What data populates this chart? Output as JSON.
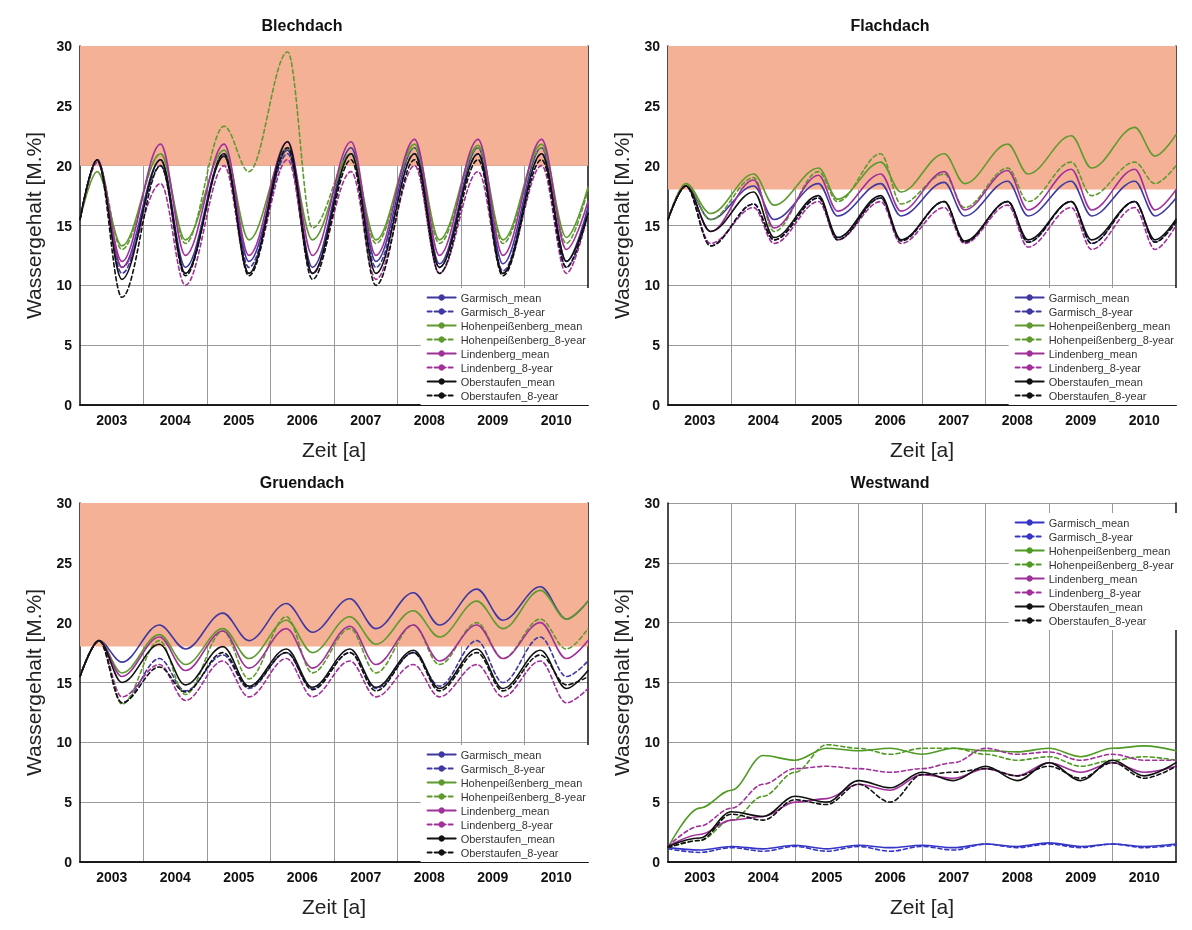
{
  "chart_data": [
    {
      "type": "line",
      "title": "Blechdach",
      "xlabel": "Zeit [a]",
      "ylabel": "Wassergehalt [M.%]",
      "grid": true,
      "legend": "bottom right",
      "xlim": [
        2003,
        2011
      ],
      "xticks": [
        {
          "value": 2003.5,
          "label": "2003"
        },
        {
          "value": 2004,
          "label": null
        },
        {
          "value": 2004.5,
          "label": "2004"
        },
        {
          "value": 2005,
          "label": null
        },
        {
          "value": 2005.5,
          "label": "2005"
        },
        {
          "value": 2006,
          "label": null
        },
        {
          "value": 2006.5,
          "label": "2006"
        },
        {
          "value": 2007,
          "label": null
        },
        {
          "value": 2007.5,
          "label": "2007"
        },
        {
          "value": 2008,
          "label": null
        },
        {
          "value": 2008.5,
          "label": "2008"
        },
        {
          "value": 2009,
          "label": null
        },
        {
          "value": 2009.5,
          "label": "2009"
        },
        {
          "value": 2010,
          "label": null
        },
        {
          "value": 2010.5,
          "label": "2010"
        }
      ],
      "ylim": [
        0,
        30
      ],
      "yticks": [
        0,
        5,
        10,
        15,
        20,
        25,
        30
      ],
      "bands": [
        {
          "axis": "y",
          "from": 20,
          "to": 30,
          "color": "#f4b196"
        }
      ],
      "x": [
        2003.0,
        2003.27,
        2003.66,
        2004.27,
        2004.66,
        2005.27,
        2005.66,
        2006.27,
        2006.66,
        2007.27,
        2007.66,
        2008.27,
        2008.66,
        2009.27,
        2009.66,
        2010.27,
        2010.66,
        2011.0
      ],
      "series": [
        {
          "name": "Garmisch_mean",
          "color": "#3f38a0",
          "line_style": "solid",
          "values": [
            15.5,
            20.5,
            11.5,
            20.5,
            11.5,
            21,
            12,
            21.3,
            11.5,
            21.5,
            12,
            21.5,
            11.8,
            21.5,
            11.8,
            21.5,
            12,
            16.5
          ]
        },
        {
          "name": "Garmisch_8-year",
          "color": "#3f38a0",
          "line_style": "dashed",
          "values": [
            15.5,
            20.5,
            11,
            20,
            11,
            21,
            11.5,
            21,
            11,
            21,
            11.5,
            21,
            11.5,
            21,
            11.2,
            21,
            11.5,
            16
          ]
        },
        {
          "name": "Hohenpeißenberg_mean",
          "color": "#5f9a2e",
          "line_style": "solid",
          "values": [
            15.5,
            19.5,
            13.3,
            21,
            13.8,
            21.3,
            13.8,
            21.5,
            13.8,
            21,
            13.8,
            21.8,
            13.8,
            21.7,
            13.8,
            21.8,
            14,
            18.2
          ]
        },
        {
          "name": "Hohenpeißenberg_8-year",
          "color": "#5f9a2e",
          "line_style": "dashed",
          "values": [
            15.5,
            20.3,
            13,
            21,
            13.5,
            23.3,
            19.5,
            29.5,
            14.8,
            21,
            13.5,
            21.5,
            13.5,
            21.5,
            13.5,
            21.5,
            13.5,
            18
          ]
        },
        {
          "name": "Lindenberg_mean",
          "color": "#a0309a",
          "line_style": "solid",
          "values": [
            15.5,
            20.5,
            12,
            21.8,
            12.5,
            21.8,
            12.5,
            22,
            12.5,
            22,
            12.5,
            22.2,
            12.5,
            22.2,
            12.5,
            22.2,
            13,
            17
          ]
        },
        {
          "name": "Lindenberg_8-year",
          "color": "#a0309a",
          "line_style": "dashed",
          "values": [
            15.5,
            20.3,
            11.5,
            18.5,
            10,
            20,
            11,
            20.5,
            11,
            19.5,
            10.5,
            20,
            11,
            19.5,
            11,
            20,
            11,
            16
          ]
        },
        {
          "name": "Oberstaufen_mean",
          "color": "#111111",
          "line_style": "solid",
          "values": [
            15.5,
            20.5,
            10.5,
            20.5,
            11,
            20.8,
            11,
            22,
            11,
            21,
            11,
            21,
            11.5,
            21,
            11,
            21,
            12,
            16
          ]
        },
        {
          "name": "Oberstaufen_8-year",
          "color": "#111111",
          "line_style": "dashed",
          "values": [
            15.5,
            20.5,
            9,
            20,
            10.8,
            21,
            10.8,
            21.5,
            10.5,
            20.5,
            10,
            20.5,
            11,
            20.5,
            10.8,
            20.5,
            11.5,
            16
          ]
        }
      ]
    },
    {
      "type": "line",
      "title": "Flachdach",
      "xlabel": "Zeit [a]",
      "ylabel": "Wassergehalt [M.%]",
      "grid": true,
      "legend": "bottom right",
      "xlim": [
        2003,
        2011
      ],
      "xticks": [
        {
          "value": 2003.5,
          "label": "2003"
        },
        {
          "value": 2004,
          "label": null
        },
        {
          "value": 2004.5,
          "label": "2004"
        },
        {
          "value": 2005,
          "label": null
        },
        {
          "value": 2005.5,
          "label": "2005"
        },
        {
          "value": 2006,
          "label": null
        },
        {
          "value": 2006.5,
          "label": "2006"
        },
        {
          "value": 2007,
          "label": null
        },
        {
          "value": 2007.5,
          "label": "2007"
        },
        {
          "value": 2008,
          "label": null
        },
        {
          "value": 2008.5,
          "label": "2008"
        },
        {
          "value": 2009,
          "label": null
        },
        {
          "value": 2009.5,
          "label": "2009"
        },
        {
          "value": 2010,
          "label": null
        },
        {
          "value": 2010.5,
          "label": "2010"
        }
      ],
      "ylim": [
        0,
        30
      ],
      "yticks": [
        0,
        5,
        10,
        15,
        20,
        25,
        30
      ],
      "bands": [
        {
          "axis": "y",
          "from": 18,
          "to": 30,
          "color": "#f4b196"
        }
      ],
      "x": [
        2003.0,
        2003.28,
        2003.67,
        2004.35,
        2004.67,
        2005.37,
        2005.67,
        2006.35,
        2006.67,
        2007.35,
        2007.67,
        2008.35,
        2008.67,
        2009.35,
        2009.67,
        2010.35,
        2010.67,
        2011.0
      ],
      "series": [
        {
          "name": "Garmisch_mean",
          "color": "#3f38a0",
          "line_style": "solid",
          "values": [
            15.5,
            18.3,
            15.5,
            18.3,
            15.5,
            18.5,
            15.8,
            18.5,
            15.8,
            18.6,
            15.8,
            18.7,
            15.8,
            18.7,
            15.8,
            18.7,
            15.8,
            17.3
          ]
        },
        {
          "name": "Garmisch_8-year",
          "color": "#3f38a0",
          "line_style": "dashed",
          "values": [
            15.5,
            18.3,
            13.3,
            16.8,
            13.8,
            17.3,
            14,
            17.3,
            13.8,
            17,
            13.6,
            17,
            13.6,
            17,
            13.5,
            17,
            13.6,
            15.5
          ]
        },
        {
          "name": "Hohenpeißenberg_mean",
          "color": "#5f9a2e",
          "line_style": "solid",
          "values": [
            15.5,
            18.5,
            16,
            19.3,
            16.7,
            19.8,
            17.2,
            20.3,
            17.8,
            21,
            18.5,
            21.8,
            19.3,
            22.5,
            19.8,
            23.2,
            20.8,
            22.6
          ]
        },
        {
          "name": "Hohenpeißenberg_8-year",
          "color": "#5f9a2e",
          "line_style": "dashed",
          "values": [
            15.5,
            18.5,
            15.5,
            19,
            14.5,
            19.5,
            17,
            21,
            16.8,
            19.3,
            16.5,
            19.8,
            17,
            20.3,
            17.5,
            20.3,
            18.5,
            20
          ]
        },
        {
          "name": "Lindenberg_mean",
          "color": "#a0309a",
          "line_style": "solid",
          "values": [
            15.5,
            18.3,
            14.5,
            18.8,
            14.8,
            19.2,
            16.2,
            19.3,
            16.2,
            19.5,
            16.3,
            19.6,
            16.3,
            19.7,
            16.3,
            19.7,
            16.3,
            18
          ]
        },
        {
          "name": "Lindenberg_8-year",
          "color": "#a0309a",
          "line_style": "dashed",
          "values": [
            15.5,
            18.3,
            13.5,
            16.5,
            13.5,
            17,
            13.8,
            17,
            13.5,
            16.5,
            13.5,
            16.7,
            13.2,
            16.5,
            13,
            16.5,
            13,
            15
          ]
        },
        {
          "name": "Oberstaufen_mean",
          "color": "#111111",
          "line_style": "solid",
          "values": [
            15.5,
            18.3,
            14.5,
            17.8,
            14,
            17.5,
            14,
            17.5,
            13.8,
            17,
            13.7,
            17,
            13.8,
            17,
            13.8,
            17,
            13.8,
            15.5
          ]
        },
        {
          "name": "Oberstaufen_8-year",
          "color": "#111111",
          "line_style": "dashed",
          "values": [
            15.5,
            18.3,
            13.3,
            16.8,
            13.8,
            17.3,
            13.8,
            17.3,
            13.7,
            17,
            13.6,
            17,
            13.6,
            17,
            13.5,
            17,
            13.6,
            15.3
          ]
        }
      ]
    },
    {
      "type": "line",
      "title": "Gruendach",
      "xlabel": "Zeit [a]",
      "ylabel": "Wassergehalt [M.%]",
      "grid": true,
      "legend": "bottom right",
      "xlim": [
        2003,
        2011
      ],
      "xticks": [
        {
          "value": 2003.5,
          "label": "2003"
        },
        {
          "value": 2004,
          "label": null
        },
        {
          "value": 2004.5,
          "label": "2004"
        },
        {
          "value": 2005,
          "label": null
        },
        {
          "value": 2005.5,
          "label": "2005"
        },
        {
          "value": 2006,
          "label": null
        },
        {
          "value": 2006.5,
          "label": "2006"
        },
        {
          "value": 2007,
          "label": null
        },
        {
          "value": 2007.5,
          "label": "2007"
        },
        {
          "value": 2008,
          "label": null
        },
        {
          "value": 2008.5,
          "label": "2008"
        },
        {
          "value": 2009,
          "label": null
        },
        {
          "value": 2009.5,
          "label": "2009"
        },
        {
          "value": 2010,
          "label": null
        },
        {
          "value": 2010.5,
          "label": "2010"
        }
      ],
      "ylim": [
        0,
        30
      ],
      "yticks": [
        0,
        5,
        10,
        15,
        20,
        25,
        30
      ],
      "bands": [
        {
          "axis": "y",
          "from": 18,
          "to": 30,
          "color": "#f4b196"
        }
      ],
      "x": [
        2003.0,
        2003.3,
        2003.66,
        2004.25,
        2004.66,
        2005.25,
        2005.66,
        2006.25,
        2006.66,
        2007.25,
        2007.66,
        2008.25,
        2008.66,
        2009.25,
        2009.66,
        2010.25,
        2010.66,
        2011.0
      ],
      "series": [
        {
          "name": "Garmisch_mean",
          "color": "#3f38a0",
          "line_style": "solid",
          "values": [
            15.5,
            18.5,
            16.7,
            19.8,
            17.8,
            20.8,
            18.5,
            21.6,
            19.2,
            22,
            19.5,
            22.5,
            19.8,
            22.8,
            20.2,
            23,
            20.3,
            21.8
          ]
        },
        {
          "name": "Garmisch_8-year",
          "color": "#3f38a0",
          "line_style": "dashed",
          "values": [
            15.5,
            18.5,
            13.3,
            17,
            14.3,
            17.3,
            14.5,
            17.5,
            14.5,
            17.5,
            14.5,
            17.5,
            14.7,
            18.5,
            15,
            18.8,
            15.5,
            16.8
          ]
        },
        {
          "name": "Hohenpeißenberg_mean",
          "color": "#5f9a2e",
          "line_style": "solid",
          "values": [
            15.5,
            18.5,
            15.8,
            19,
            16.5,
            19.5,
            17,
            20.2,
            17.5,
            20.5,
            18.2,
            21,
            18.8,
            21.8,
            19.5,
            22.7,
            20.3,
            21.8
          ]
        },
        {
          "name": "Hohenpeißenberg_8-year",
          "color": "#5f9a2e",
          "line_style": "dashed",
          "values": [
            15.5,
            18.5,
            13.2,
            18.5,
            14,
            19.3,
            15.3,
            20.5,
            15.8,
            19.5,
            15.8,
            19.8,
            16.5,
            20,
            17,
            20.3,
            17.8,
            19.5
          ]
        },
        {
          "name": "Lindenberg_mean",
          "color": "#a0309a",
          "line_style": "solid",
          "values": [
            15.5,
            18.5,
            15.5,
            18.8,
            16,
            19.3,
            16.2,
            19.5,
            16.2,
            19.7,
            16.5,
            19.8,
            16.8,
            19.8,
            17,
            20,
            17,
            18.5
          ]
        },
        {
          "name": "Lindenberg_8-year",
          "color": "#a0309a",
          "line_style": "dashed",
          "values": [
            15.5,
            18.5,
            13.8,
            16.5,
            13.5,
            16.8,
            13.8,
            17,
            13.8,
            16.8,
            13.8,
            16.5,
            13.8,
            16.5,
            13.8,
            16.8,
            13.3,
            14.5
          ]
        },
        {
          "name": "Oberstaufen_mean",
          "color": "#111111",
          "line_style": "solid",
          "values": [
            15.5,
            18.5,
            15,
            18.2,
            14.8,
            18,
            14.7,
            17.8,
            14.6,
            17.8,
            14.6,
            17.7,
            14.5,
            17.8,
            14.5,
            17.7,
            14.5,
            16
          ]
        },
        {
          "name": "Oberstaufen_8-year",
          "color": "#111111",
          "line_style": "dashed",
          "values": [
            15.5,
            18.5,
            13.3,
            16.3,
            14.2,
            17.5,
            14.6,
            17.5,
            14.4,
            17.5,
            14.3,
            17.5,
            14.3,
            17.5,
            14.3,
            17.3,
            14.8,
            15.5
          ]
        }
      ]
    },
    {
      "type": "line",
      "title": "Westwand",
      "xlabel": "Zeit [a]",
      "ylabel": "Wassergehalt [M.%]",
      "grid": true,
      "legend": "top right",
      "xlim": [
        2003,
        2011
      ],
      "xticks": [
        {
          "value": 2003.5,
          "label": "2003"
        },
        {
          "value": 2004,
          "label": null
        },
        {
          "value": 2004.5,
          "label": "2004"
        },
        {
          "value": 2005,
          "label": null
        },
        {
          "value": 2005.5,
          "label": "2005"
        },
        {
          "value": 2006,
          "label": null
        },
        {
          "value": 2006.5,
          "label": "2006"
        },
        {
          "value": 2007,
          "label": null
        },
        {
          "value": 2007.5,
          "label": "2007"
        },
        {
          "value": 2008,
          "label": null
        },
        {
          "value": 2008.5,
          "label": "2008"
        },
        {
          "value": 2009,
          "label": null
        },
        {
          "value": 2009.5,
          "label": "2009"
        },
        {
          "value": 2010,
          "label": null
        },
        {
          "value": 2010.5,
          "label": "2010"
        }
      ],
      "ylim": [
        0,
        30
      ],
      "yticks": [
        0,
        5,
        10,
        15,
        20,
        25,
        30
      ],
      "x": [
        2003.0,
        2003.5,
        2004.0,
        2004.5,
        2005.0,
        2005.5,
        2006.0,
        2006.5,
        2007.0,
        2007.5,
        2008.0,
        2008.5,
        2009.0,
        2009.5,
        2010.0,
        2010.5,
        2011.0
      ],
      "series": [
        {
          "name": "Garmisch_mean",
          "color": "#3535c8",
          "line_style": "solid",
          "values": [
            1.2,
            1.0,
            1.3,
            1.1,
            1.4,
            1.1,
            1.4,
            1.2,
            1.4,
            1.2,
            1.5,
            1.3,
            1.6,
            1.3,
            1.5,
            1.3,
            1.5
          ]
        },
        {
          "name": "Garmisch_8-year",
          "color": "#3535c8",
          "line_style": "dashed",
          "values": [
            1.1,
            0.8,
            1.2,
            0.9,
            1.3,
            0.9,
            1.3,
            0.9,
            1.3,
            1.0,
            1.5,
            1.2,
            1.5,
            1.2,
            1.5,
            1.2,
            1.4
          ]
        },
        {
          "name": "Hohenpeißenberg_mean",
          "color": "#4f9a22",
          "line_style": "solid",
          "values": [
            1.2,
            4.5,
            6.0,
            8.9,
            8.5,
            9.5,
            9.3,
            9.5,
            9.0,
            9.5,
            9.3,
            9.2,
            9.5,
            8.8,
            9.5,
            9.7,
            9.3
          ]
        },
        {
          "name": "Hohenpeißenberg_8-year",
          "color": "#4f9a22",
          "line_style": "dashed",
          "values": [
            1.2,
            1.8,
            3.5,
            5.5,
            7.5,
            9.8,
            9.5,
            9.0,
            9.5,
            9.5,
            9.0,
            8.5,
            8.8,
            8.0,
            8.5,
            8.8,
            8.5
          ]
        },
        {
          "name": "Lindenberg_mean",
          "color": "#a0309a",
          "line_style": "solid",
          "values": [
            1.3,
            2.3,
            3.5,
            3.8,
            5.0,
            5.3,
            6.5,
            6.0,
            7.3,
            7.0,
            7.8,
            7.2,
            8.3,
            7.5,
            8.3,
            7.5,
            8.0
          ]
        },
        {
          "name": "Lindenberg_8-year",
          "color": "#a0309a",
          "line_style": "dashed",
          "values": [
            1.3,
            3.0,
            4.5,
            6.5,
            7.8,
            8.0,
            7.8,
            7.5,
            7.8,
            8.3,
            9.5,
            9.0,
            9.2,
            8.5,
            9.0,
            8.5,
            8.5
          ]
        },
        {
          "name": "Oberstaufen_mean",
          "color": "#111111",
          "line_style": "solid",
          "values": [
            1.3,
            2.0,
            4.2,
            3.8,
            5.5,
            5.0,
            6.8,
            6.2,
            7.5,
            6.8,
            8.0,
            6.8,
            8.3,
            6.8,
            8.5,
            7.2,
            8.3
          ]
        },
        {
          "name": "Oberstaufen_8-year",
          "color": "#111111",
          "line_style": "dashed",
          "values": [
            1.2,
            1.8,
            4.0,
            3.5,
            5.2,
            4.8,
            6.5,
            5.0,
            7.3,
            7.5,
            7.8,
            7.2,
            8.0,
            7.0,
            8.3,
            7.0,
            8.0
          ]
        }
      ]
    }
  ]
}
